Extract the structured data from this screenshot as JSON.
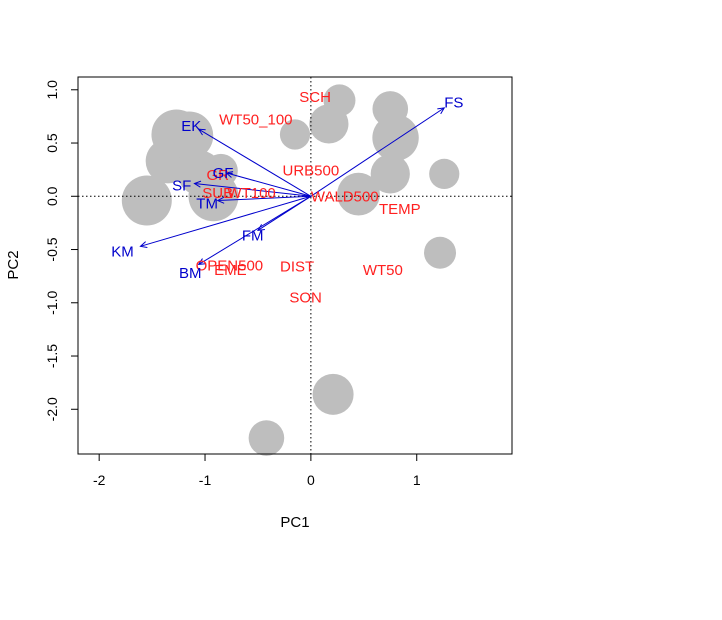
{
  "chart_data": {
    "type": "scatter",
    "title": "",
    "xlabel": "PC1",
    "ylabel": "PC2",
    "xlim": [
      -2.2,
      1.9
    ],
    "ylim": [
      -2.42,
      1.12
    ],
    "xticks": [
      -2,
      -1,
      0,
      1
    ],
    "yticks": [
      1.0,
      0.5,
      0.0,
      -0.5,
      -1.0,
      -1.5,
      -2.0
    ],
    "xtick_labels": [
      "-2",
      "-1",
      "0",
      "1"
    ],
    "ytick_labels": [
      "1.0",
      "0.5",
      "0.0",
      "-0.5",
      "-1.0",
      "-1.5",
      "-2.0"
    ],
    "reference_lines": {
      "x": 0,
      "y": 0,
      "style": "dotted"
    },
    "points_color": "#bebebe",
    "points": [
      {
        "x": -1.55,
        "y": -0.04,
        "size": 1.0
      },
      {
        "x": -1.27,
        "y": 0.58,
        "size": 1.0
      },
      {
        "x": -1.35,
        "y": 0.33,
        "size": 0.85
      },
      {
        "x": -1.15,
        "y": 0.57,
        "size": 0.95
      },
      {
        "x": -1.05,
        "y": 0.22,
        "size": 0.85
      },
      {
        "x": -0.92,
        "y": 0.0,
        "size": 1.0
      },
      {
        "x": -0.85,
        "y": 0.24,
        "size": 0.55
      },
      {
        "x": -0.15,
        "y": 0.58,
        "size": 0.45
      },
      {
        "x": 0.17,
        "y": 0.68,
        "size": 0.7
      },
      {
        "x": 0.27,
        "y": 0.9,
        "size": 0.5
      },
      {
        "x": 0.45,
        "y": 0.02,
        "size": 0.8
      },
      {
        "x": 0.75,
        "y": 0.82,
        "size": 0.6
      },
      {
        "x": 0.8,
        "y": 0.55,
        "size": 0.9
      },
      {
        "x": 0.75,
        "y": 0.21,
        "size": 0.7
      },
      {
        "x": 1.26,
        "y": 0.21,
        "size": 0.45
      },
      {
        "x": 1.22,
        "y": -0.53,
        "size": 0.5
      },
      {
        "x": 0.21,
        "y": -1.86,
        "size": 0.75
      },
      {
        "x": -0.42,
        "y": -2.27,
        "size": 0.6
      }
    ],
    "arrows_color": "#0000cc",
    "arrows": [
      {
        "name": "FS",
        "x": 1.26,
        "y": 0.83
      },
      {
        "name": "EK",
        "x": -1.06,
        "y": 0.63
      },
      {
        "name": "SF",
        "x": -1.1,
        "y": 0.12
      },
      {
        "name": "GF",
        "x": -0.8,
        "y": 0.22
      },
      {
        "name": "TM",
        "x": -0.88,
        "y": -0.04
      },
      {
        "name": "KM",
        "x": -1.61,
        "y": -0.47
      },
      {
        "name": "FM",
        "x": -0.5,
        "y": -0.32
      },
      {
        "name": "BM",
        "x": -1.06,
        "y": -0.64
      }
    ],
    "arrow_labels": [
      {
        "text": "FS",
        "x": 1.35,
        "y": 0.88
      },
      {
        "text": "EK",
        "x": -1.13,
        "y": 0.66
      },
      {
        "text": "SF",
        "x": -1.22,
        "y": 0.1
      },
      {
        "text": "GF",
        "x": -0.83,
        "y": 0.22
      },
      {
        "text": "TM",
        "x": -0.98,
        "y": -0.07
      },
      {
        "text": "KM",
        "x": -1.78,
        "y": -0.52
      },
      {
        "text": "FM",
        "x": -0.55,
        "y": -0.37
      },
      {
        "text": "BM",
        "x": -1.14,
        "y": -0.72
      }
    ],
    "env_labels_color": "#ff2020",
    "env_labels": [
      {
        "text": "SCH",
        "x": 0.04,
        "y": 0.93
      },
      {
        "text": "WT50_100",
        "x": -0.52,
        "y": 0.72
      },
      {
        "text": "URB500",
        "x": 0.0,
        "y": 0.24
      },
      {
        "text": "GR",
        "x": -0.88,
        "y": 0.2
      },
      {
        "text": "SUB",
        "x": -0.88,
        "y": 0.03
      },
      {
        "text": "WT100",
        "x": -0.56,
        "y": 0.03
      },
      {
        "text": "WALD500",
        "x": 0.32,
        "y": 0.0
      },
      {
        "text": "TEMP",
        "x": 0.84,
        "y": -0.12
      },
      {
        "text": "OPEN500",
        "x": -0.77,
        "y": -0.65
      },
      {
        "text": "EME",
        "x": -0.76,
        "y": -0.69
      },
      {
        "text": "DIST",
        "x": -0.13,
        "y": -0.66
      },
      {
        "text": "WT50",
        "x": 0.68,
        "y": -0.69
      },
      {
        "text": "SON",
        "x": -0.05,
        "y": -0.95
      }
    ]
  }
}
